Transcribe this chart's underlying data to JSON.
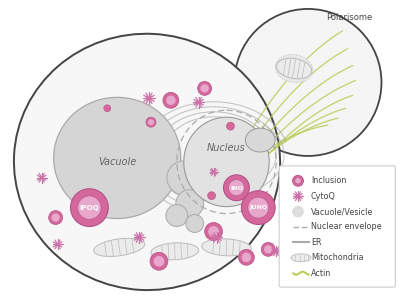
{
  "bg_color": "#ffffff",
  "cell_fill": "#f7f7f7",
  "cell_outline": "#444444",
  "vacuole_fill": "#d5d5d5",
  "vacuole_outline": "#aaaaaa",
  "nucleus_fill": "#e2e2e2",
  "nucleus_outline": "#999999",
  "bud_fill": "#f5f5f5",
  "bud_outline": "#444444",
  "inc_fill": "#d4689a",
  "inc_inner": "#e8a8cc",
  "inc_outline": "#b8508a",
  "cytoq_color": "#cc70a8",
  "er_color": "#aaaaaa",
  "actin_color": "#b8cc50",
  "mito_fill": "#ebebeb",
  "mito_outline": "#bbbbbb",
  "nuc_env_color": "#aaaaaa",
  "label_color": "#555555",
  "label_vacuole": "Vacuole",
  "label_nucleus": "Nucleus",
  "label_ipoq": "IPOQ",
  "label_inq": "INQ",
  "label_junq": "JUNQ",
  "label_polarisome": "Polarisome"
}
